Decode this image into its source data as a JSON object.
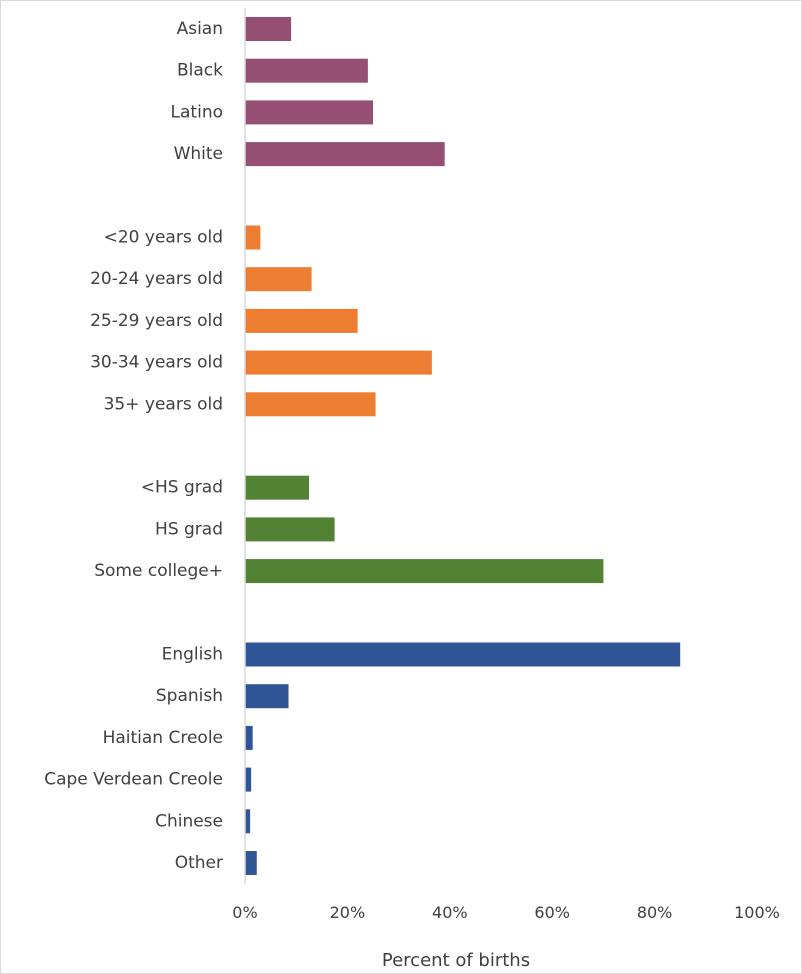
{
  "chart_data": {
    "type": "bar",
    "orientation": "horizontal",
    "title": "",
    "xlabel": "Percent of births",
    "ylabel": "",
    "xlim": [
      0,
      100
    ],
    "x_unit": "%",
    "xticks": [
      0,
      20,
      40,
      60,
      80,
      100
    ],
    "xtick_labels": [
      "0%",
      "20%",
      "40%",
      "60%",
      "80%",
      "100%"
    ],
    "grid": false,
    "legend": "none",
    "groups": [
      {
        "color": "#954F72",
        "categories": [
          "Asian",
          "Black",
          "Latino",
          "White"
        ],
        "values": [
          9,
          24,
          25,
          39
        ]
      },
      {
        "color": "#ED7D31",
        "categories": [
          "<20 years old",
          "20-24 years old",
          "25-29 years old",
          "30-34 years old",
          "35+ years old"
        ],
        "values": [
          3,
          13,
          22,
          36.5,
          25.5
        ]
      },
      {
        "color": "#548235",
        "categories": [
          "<HS grad",
          "HS grad",
          "Some college+"
        ],
        "values": [
          12.5,
          17.5,
          70
        ]
      },
      {
        "color": "#2F5597",
        "categories": [
          "English",
          "Spanish",
          "Haitian Creole",
          "Cape Verdean Creole",
          "Chinese",
          "Other"
        ],
        "values": [
          85,
          8.5,
          1.5,
          1.2,
          1,
          2.3
        ]
      }
    ]
  }
}
